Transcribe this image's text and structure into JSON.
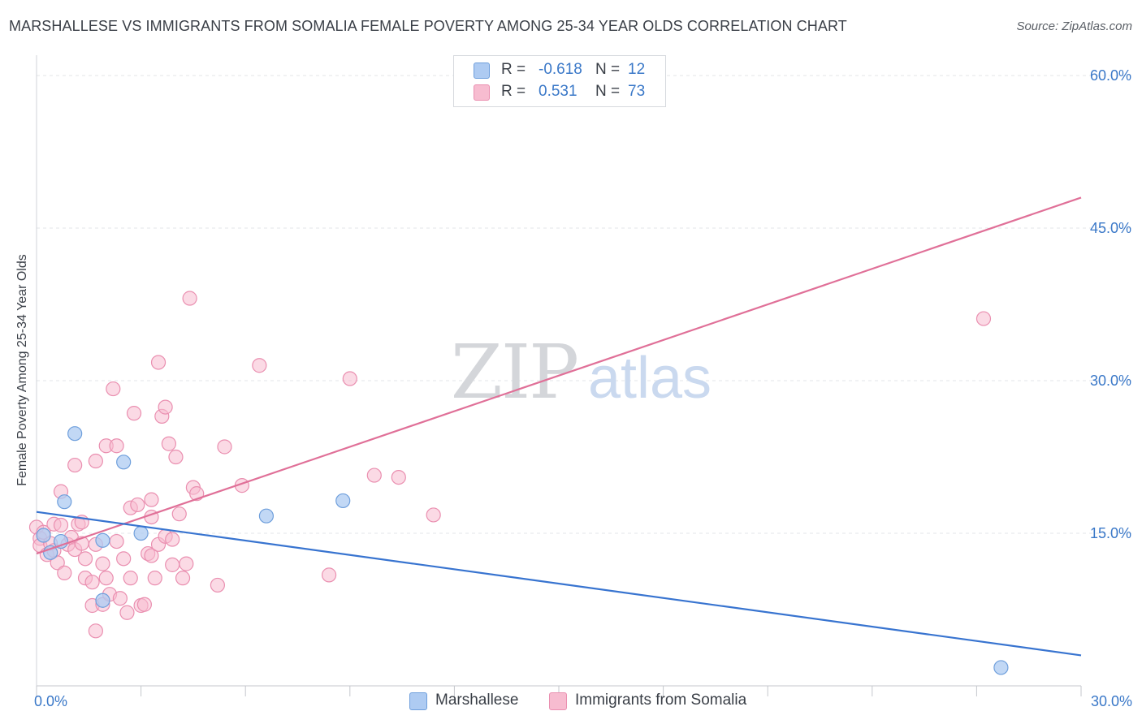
{
  "header": {
    "title": "MARSHALLESE VS IMMIGRANTS FROM SOMALIA FEMALE POVERTY AMONG 25-34 YEAR OLDS CORRELATION CHART",
    "source": "Source: ZipAtlas.com"
  },
  "watermark": {
    "zip": "ZIP",
    "atlas": "atlas"
  },
  "colors": {
    "marshallese_fill": "#aecbf2",
    "marshallese_stroke": "#6f9fdc",
    "marshallese_line": "#3874d0",
    "somalia_fill": "#f7bcd0",
    "somalia_stroke": "#ea8fb0",
    "somalia_line": "#e07098",
    "axis_text": "#3a78c8"
  },
  "legend": {
    "items": [
      {
        "r_label": "R =",
        "r_value": "-0.618",
        "n_label": "N =",
        "n_value": "12"
      },
      {
        "r_label": "R =",
        "r_value": "0.531",
        "n_label": "N =",
        "n_value": "73"
      }
    ],
    "bottom": [
      "Marshallese",
      "Immigrants from Somalia"
    ]
  },
  "chart_data": {
    "type": "scatter",
    "title": "MARSHALLESE VS IMMIGRANTS FROM SOMALIA FEMALE POVERTY AMONG 25-34 YEAR OLDS CORRELATION CHART",
    "xlabel": "",
    "ylabel": "Female Poverty Among 25-34 Year Olds",
    "xlim": [
      0,
      30
    ],
    "ylim": [
      0,
      62
    ],
    "x_tick_labels": [
      "0.0%",
      "30.0%"
    ],
    "y_ticks": [
      15,
      30,
      45,
      60
    ],
    "y_tick_labels": [
      "15.0%",
      "30.0%",
      "45.0%",
      "60.0%"
    ],
    "grid": true,
    "legend_position": "top-center",
    "series": [
      {
        "name": "Marshallese",
        "points": [
          [
            0.2,
            14.8
          ],
          [
            0.4,
            13.1
          ],
          [
            0.7,
            14.2
          ],
          [
            0.8,
            18.1
          ],
          [
            1.1,
            24.8
          ],
          [
            1.9,
            8.4
          ],
          [
            1.9,
            14.3
          ],
          [
            2.5,
            22.0
          ],
          [
            3.0,
            15.0
          ],
          [
            6.6,
            16.7
          ],
          [
            8.8,
            18.2
          ],
          [
            27.7,
            1.8
          ]
        ],
        "trend": [
          [
            0,
            17.1
          ],
          [
            30,
            3.0
          ]
        ]
      },
      {
        "name": "Immigrants from Somalia",
        "points": [
          [
            0.0,
            15.6
          ],
          [
            0.1,
            14.5
          ],
          [
            0.1,
            13.8
          ],
          [
            0.2,
            15.1
          ],
          [
            0.3,
            12.9
          ],
          [
            0.4,
            14.0
          ],
          [
            0.5,
            15.9
          ],
          [
            0.5,
            13.3
          ],
          [
            0.6,
            12.1
          ],
          [
            0.7,
            15.8
          ],
          [
            0.7,
            19.1
          ],
          [
            0.8,
            11.1
          ],
          [
            0.9,
            13.9
          ],
          [
            1.0,
            14.6
          ],
          [
            1.1,
            21.7
          ],
          [
            1.1,
            13.4
          ],
          [
            1.2,
            15.9
          ],
          [
            1.3,
            16.1
          ],
          [
            1.3,
            14.0
          ],
          [
            1.4,
            12.5
          ],
          [
            1.4,
            10.6
          ],
          [
            1.6,
            10.2
          ],
          [
            1.6,
            7.9
          ],
          [
            1.7,
            22.1
          ],
          [
            1.7,
            13.9
          ],
          [
            1.7,
            5.4
          ],
          [
            1.9,
            8.0
          ],
          [
            1.9,
            12.0
          ],
          [
            2.0,
            23.6
          ],
          [
            2.0,
            10.6
          ],
          [
            2.1,
            9.0
          ],
          [
            2.2,
            29.2
          ],
          [
            2.3,
            14.2
          ],
          [
            2.3,
            23.6
          ],
          [
            2.4,
            8.6
          ],
          [
            2.5,
            12.5
          ],
          [
            2.6,
            7.2
          ],
          [
            2.7,
            17.5
          ],
          [
            2.7,
            10.6
          ],
          [
            2.8,
            26.8
          ],
          [
            2.9,
            17.8
          ],
          [
            3.0,
            7.9
          ],
          [
            3.1,
            8.0
          ],
          [
            3.2,
            13.0
          ],
          [
            3.3,
            16.6
          ],
          [
            3.3,
            12.8
          ],
          [
            3.3,
            18.3
          ],
          [
            3.4,
            10.6
          ],
          [
            3.5,
            13.9
          ],
          [
            3.5,
            31.8
          ],
          [
            3.6,
            26.5
          ],
          [
            3.7,
            27.4
          ],
          [
            3.7,
            14.7
          ],
          [
            3.8,
            23.8
          ],
          [
            3.9,
            11.9
          ],
          [
            3.9,
            14.4
          ],
          [
            4.0,
            22.5
          ],
          [
            4.1,
            16.9
          ],
          [
            4.2,
            10.6
          ],
          [
            4.3,
            12.0
          ],
          [
            4.4,
            38.1
          ],
          [
            4.5,
            19.5
          ],
          [
            4.6,
            18.9
          ],
          [
            5.2,
            9.9
          ],
          [
            5.4,
            23.5
          ],
          [
            5.9,
            19.7
          ],
          [
            6.4,
            31.5
          ],
          [
            8.4,
            10.9
          ],
          [
            9.0,
            30.2
          ],
          [
            9.7,
            20.7
          ],
          [
            10.4,
            20.5
          ],
          [
            11.4,
            16.8
          ],
          [
            27.2,
            36.1
          ]
        ],
        "trend": [
          [
            0,
            13.0
          ],
          [
            30,
            48.0
          ]
        ]
      }
    ]
  }
}
